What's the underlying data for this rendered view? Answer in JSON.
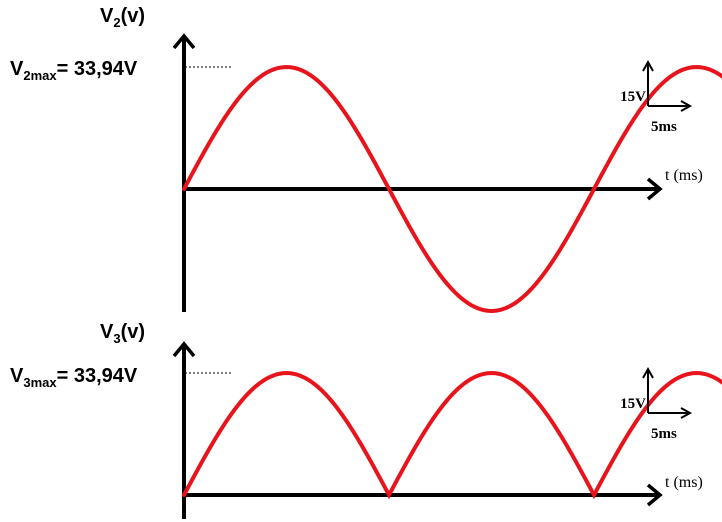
{
  "colors": {
    "waveform": "#e8141c",
    "axis": "#000000",
    "guide": "#000000"
  },
  "top_graph": {
    "y_label": {
      "base": "V",
      "sub": "2",
      "rest": "(v)"
    },
    "max_label": {
      "base": "V",
      "sub": "2max",
      "rest": "= 33,94V"
    },
    "x_label": "t (ms)",
    "scale": {
      "voltage": "15V",
      "time": "5ms"
    }
  },
  "bottom_graph": {
    "y_label": {
      "base": "V",
      "sub": "3",
      "rest": "(v)"
    },
    "max_label": {
      "base": "V",
      "sub": "3max",
      "rest": "= 33,94V"
    },
    "x_label": "t (ms)",
    "scale": {
      "voltage": "15V",
      "time": "5ms"
    }
  },
  "chart_data": [
    {
      "type": "line",
      "title": "",
      "ylabel": "V2(v)",
      "xlabel": "t (ms)",
      "series": [
        {
          "name": "",
          "waveform": "sine",
          "amplitude_v": 33.94,
          "period_ms": 20,
          "duration_ms": 41
        }
      ]
    },
    {
      "type": "line",
      "title": "",
      "ylabel": "V3(v)",
      "xlabel": "t (ms)",
      "series": [
        {
          "name": "",
          "waveform": "full-wave rectified sine",
          "amplitude_v": 33.94,
          "period_ms": 10,
          "duration_ms": 40
        }
      ]
    }
  ]
}
